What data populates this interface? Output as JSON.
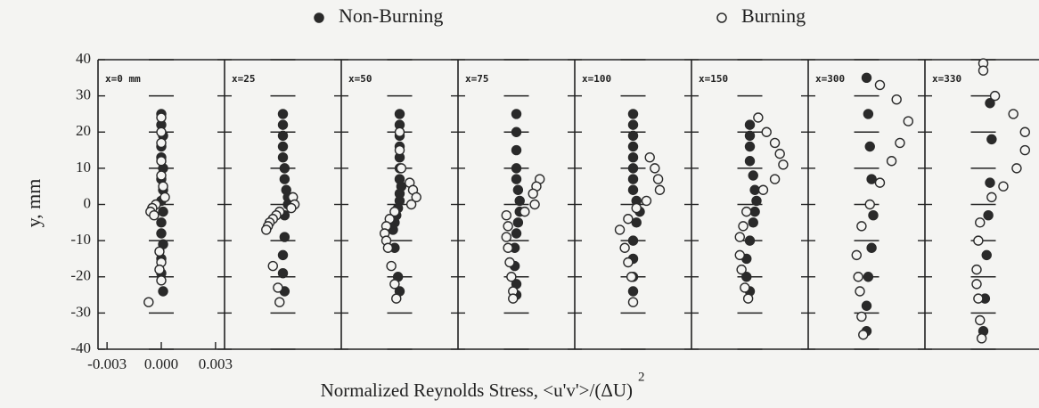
{
  "chart_data": {
    "type": "scatter",
    "ylabel": "y, mm",
    "xlabel": "Normalized Reynolds Stress, <u'v'>/(ΔU)",
    "xlabel_exponent": "2",
    "series": [
      {
        "name": "Non-Burning",
        "color": "#2a2a2a",
        "marker": "filled"
      },
      {
        "name": "Burning",
        "color": "#2a2a2a",
        "marker": "open"
      }
    ],
    "ylim": [
      -40,
      40
    ],
    "yticks": [
      -40,
      -30,
      -20,
      -10,
      0,
      10,
      20,
      30,
      40
    ],
    "xlim": [
      -0.0035,
      0.0035
    ],
    "xticks": [
      {
        "value": -0.003,
        "label": "-0.003"
      },
      {
        "value": 0,
        "label": "0.000"
      },
      0.003
    ],
    "panels": [
      {
        "label": "x=0 mm",
        "series": [
          {
            "x": [
              0,
              0,
              0.0001,
              0,
              0,
              0.0001,
              0,
              0.0001,
              0,
              0.0001,
              0,
              0,
              0.0001,
              0,
              0,
              0.0001
            ],
            "values": [
              25,
              22,
              19,
              16,
              13,
              10,
              7,
              4,
              1,
              -2,
              -5,
              -8,
              -11,
              -15,
              -19,
              -24
            ]
          },
          {
            "x": [
              0,
              0,
              0,
              0,
              0,
              0.0001,
              0.0002,
              -0.0003,
              -0.0005,
              -0.0006,
              -0.0004,
              -0.0001,
              0,
              -0.0001,
              0,
              -0.0007
            ],
            "values": [
              24,
              20,
              17,
              12,
              8,
              5,
              2,
              0,
              -1,
              -2,
              -3,
              -13,
              -16,
              -18,
              -21,
              -27
            ]
          }
        ]
      },
      {
        "label": "x=25",
        "series": [
          {
            "x": [
              0,
              0,
              0,
              0,
              0,
              0.0001,
              0.0001,
              0.0002,
              0.0003,
              0.0003,
              0.0001,
              0.0001,
              0,
              0,
              0.0001
            ],
            "values": [
              25,
              22,
              19,
              16,
              13,
              10,
              7,
              4,
              2,
              0,
              -3,
              -9,
              -14,
              -19,
              -24
            ]
          },
          {
            "x": [
              0.0006,
              0.0007,
              0.0005,
              -0.0002,
              -0.0004,
              -0.0006,
              -0.0008,
              -0.0009,
              -0.001,
              -0.0006,
              -0.0003,
              -0.0002
            ],
            "values": [
              2,
              0,
              -1,
              -2,
              -3,
              -4,
              -5,
              -6,
              -7,
              -17,
              -23,
              -27
            ]
          }
        ]
      },
      {
        "label": "x=50",
        "series": [
          {
            "x": [
              0,
              0,
              0,
              0,
              0,
              0,
              0,
              0.0001,
              0,
              0,
              -0.0001,
              -0.0002,
              -0.0003,
              -0.0004,
              -0.0003,
              -0.0001,
              0
            ],
            "values": [
              25,
              22,
              19,
              16,
              13,
              10,
              7,
              5,
              3,
              1,
              -1,
              -3,
              -5,
              -7,
              -12,
              -20,
              -24
            ]
          },
          {
            "x": [
              0,
              0,
              0.0001,
              0.0006,
              0.0008,
              0.001,
              0.0007,
              -0.0003,
              -0.0006,
              -0.0008,
              -0.0009,
              -0.0008,
              -0.0007,
              -0.0005,
              -0.0003,
              -0.0002
            ],
            "values": [
              20,
              15,
              10,
              6,
              4,
              2,
              0,
              -2,
              -4,
              -6,
              -8,
              -10,
              -12,
              -17,
              -22,
              -26
            ]
          }
        ]
      },
      {
        "label": "x=75",
        "series": [
          {
            "x": [
              0,
              0,
              0,
              0,
              0,
              0.0001,
              0.0002,
              0.0002,
              0.0001,
              0,
              -0.0001,
              -0.0001,
              0,
              0
            ],
            "values": [
              25,
              20,
              15,
              10,
              7,
              4,
              1,
              -2,
              -5,
              -8,
              -12,
              -17,
              -22,
              -25
            ]
          },
          {
            "x": [
              0.0014,
              0.0012,
              0.001,
              0.0011,
              0.0005,
              -0.0006,
              -0.0005,
              -0.0006,
              -0.0005,
              -0.0004,
              -0.0003,
              -0.0002,
              -0.0002
            ],
            "values": [
              7,
              5,
              3,
              0,
              -2,
              -3,
              -6,
              -9,
              -12,
              -16,
              -20,
              -24,
              -26
            ]
          }
        ]
      },
      {
        "label": "x=100",
        "series": [
          {
            "x": [
              0,
              0,
              0,
              0,
              0,
              0,
              0,
              0,
              0.0002,
              0.0004,
              0.0002,
              0,
              0,
              0,
              0
            ],
            "values": [
              25,
              22,
              19,
              16,
              13,
              10,
              7,
              4,
              1,
              -2,
              -5,
              -10,
              -15,
              -20,
              -24
            ]
          },
          {
            "x": [
              0.001,
              0.0013,
              0.0015,
              0.0016,
              0.0008,
              0.0002,
              -0.0003,
              -0.0008,
              -0.0005,
              -0.0003,
              -0.0001,
              0
            ],
            "values": [
              13,
              10,
              7,
              4,
              1,
              -1,
              -4,
              -7,
              -12,
              -16,
              -20,
              -27
            ]
          }
        ]
      },
      {
        "label": "x=150",
        "series": [
          {
            "x": [
              0,
              0,
              0,
              0,
              0.0002,
              0.0003,
              0.0004,
              0.0003,
              0.0002,
              0,
              -0.0002,
              -0.0002,
              0
            ],
            "values": [
              22,
              19,
              16,
              12,
              8,
              4,
              1,
              -2,
              -5,
              -10,
              -15,
              -20,
              -24
            ]
          },
          {
            "x": [
              0.0005,
              0.001,
              0.0015,
              0.0018,
              0.002,
              0.0015,
              0.0008,
              -0.0002,
              -0.0004,
              -0.0006,
              -0.0006,
              -0.0005,
              -0.0003,
              -0.0001
            ],
            "values": [
              24,
              20,
              17,
              14,
              11,
              7,
              4,
              -2,
              -6,
              -9,
              -14,
              -18,
              -23,
              -26
            ]
          }
        ]
      },
      {
        "label": "x=300",
        "series": [
          {
            "x": [
              0,
              0.0001,
              0.0002,
              0.0003,
              0.0004,
              0.0003,
              0.0001,
              0,
              0
            ],
            "values": [
              35,
              25,
              16,
              7,
              -3,
              -12,
              -20,
              -28,
              -35
            ]
          },
          {
            "x": [
              0.0008,
              0.0018,
              0.0025,
              0.002,
              0.0015,
              0.0008,
              0.0002,
              -0.0003,
              -0.0006,
              -0.0005,
              -0.0004,
              -0.0003,
              -0.0002
            ],
            "values": [
              33,
              29,
              23,
              17,
              12,
              6,
              0,
              -6,
              -14,
              -20,
              -24,
              -31,
              -36
            ]
          }
        ]
      },
      {
        "label": "x=330",
        "series": [
          {
            "x": [
              0.0004,
              0.0005,
              0.0004,
              0.0003,
              0.0002,
              0.0001,
              0
            ],
            "values": [
              28,
              18,
              6,
              -3,
              -14,
              -26,
              -35
            ]
          },
          {
            "x": [
              0,
              0,
              0.0007,
              0.0018,
              0.0025,
              0.0025,
              0.002,
              0.0012,
              0.0005,
              -0.0002,
              -0.0003,
              -0.0004,
              -0.0004,
              -0.0003,
              -0.0002,
              -0.0001
            ],
            "values": [
              39,
              37,
              30,
              25,
              20,
              15,
              10,
              5,
              2,
              -5,
              -10,
              -18,
              -22,
              -26,
              -32,
              -37
            ]
          }
        ]
      }
    ]
  }
}
